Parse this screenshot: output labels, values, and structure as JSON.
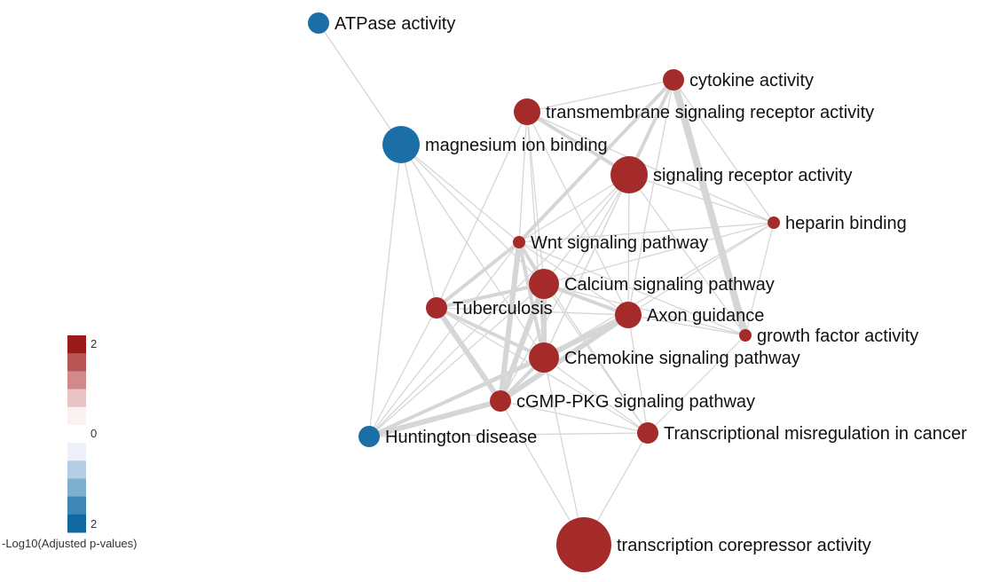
{
  "legend": {
    "title": "-Log10(Adjusted p-values)",
    "top_value": "2",
    "mid_value": "0",
    "bottom_value": "2",
    "swatch_colors": [
      "#9b1a1a",
      "#b75555",
      "#d08a8a",
      "#e8c4c4",
      "#fbf1f1",
      "#ffffff",
      "#eef1fa",
      "#b6cee3",
      "#7fafcf",
      "#3f87b5",
      "#0f68a0"
    ]
  },
  "colors": {
    "red": "#a52a2a",
    "blue": "#1c6fa6",
    "edge": "#d6d6d6"
  },
  "nodes": [
    {
      "id": "atpase",
      "label": "ATPase activity",
      "group": "blue",
      "size": "small"
    },
    {
      "id": "mg",
      "label": "magnesium ion binding",
      "group": "blue",
      "size": "large"
    },
    {
      "id": "hunt",
      "label": "Huntington disease",
      "group": "blue",
      "size": "small"
    },
    {
      "id": "cyto",
      "label": "cytokine activity",
      "group": "red",
      "size": "small"
    },
    {
      "id": "tmsr",
      "label": "transmembrane signaling receptor activity",
      "group": "red",
      "size": "medium"
    },
    {
      "id": "sra",
      "label": "signaling receptor activity",
      "group": "red",
      "size": "large"
    },
    {
      "id": "hep",
      "label": "heparin binding",
      "group": "red",
      "size": "tiny"
    },
    {
      "id": "wnt",
      "label": "Wnt signaling pathway",
      "group": "red",
      "size": "tiny"
    },
    {
      "id": "calc",
      "label": "Calcium signaling pathway",
      "group": "red",
      "size": "medium-large"
    },
    {
      "id": "tub",
      "label": "Tuberculosis",
      "group": "red",
      "size": "small"
    },
    {
      "id": "axon",
      "label": "Axon guidance",
      "group": "red",
      "size": "medium"
    },
    {
      "id": "gfa",
      "label": "growth factor activity",
      "group": "red",
      "size": "tiny"
    },
    {
      "id": "chem",
      "label": "Chemokine signaling pathway",
      "group": "red",
      "size": "medium-large"
    },
    {
      "id": "cgmp",
      "label": "cGMP-PKG signaling pathway",
      "group": "red",
      "size": "small"
    },
    {
      "id": "trans",
      "label": "Transcriptional misregulation in cancer",
      "group": "red",
      "size": "small"
    },
    {
      "id": "tca",
      "label": "transcription corepressor activity",
      "group": "red",
      "size": "huge"
    }
  ],
  "edges": [
    [
      "atpase",
      "mg",
      1
    ],
    [
      "mg",
      "tub",
      1
    ],
    [
      "mg",
      "hunt",
      1
    ],
    [
      "mg",
      "calc",
      1
    ],
    [
      "mg",
      "wnt",
      1
    ],
    [
      "mg",
      "chem",
      1
    ],
    [
      "cyto",
      "gfa",
      4
    ],
    [
      "cyto",
      "sra",
      2
    ],
    [
      "cyto",
      "tmsr",
      1
    ],
    [
      "cyto",
      "hep",
      1
    ],
    [
      "cyto",
      "wnt",
      2
    ],
    [
      "cyto",
      "chem",
      1
    ],
    [
      "cyto",
      "axon",
      1
    ],
    [
      "tmsr",
      "sra",
      2
    ],
    [
      "tmsr",
      "wnt",
      1
    ],
    [
      "tmsr",
      "tub",
      1
    ],
    [
      "tmsr",
      "calc",
      1
    ],
    [
      "tmsr",
      "axon",
      1
    ],
    [
      "tmsr",
      "hep",
      1
    ],
    [
      "tmsr",
      "chem",
      1
    ],
    [
      "sra",
      "hep",
      1
    ],
    [
      "sra",
      "wnt",
      1
    ],
    [
      "sra",
      "calc",
      1
    ],
    [
      "sra",
      "axon",
      1
    ],
    [
      "sra",
      "chem",
      1
    ],
    [
      "sra",
      "cgmp",
      1
    ],
    [
      "sra",
      "gfa",
      1
    ],
    [
      "sra",
      "hunt",
      1
    ],
    [
      "hep",
      "gfa",
      1
    ],
    [
      "hep",
      "axon",
      1
    ],
    [
      "hep",
      "wnt",
      1
    ],
    [
      "hep",
      "calc",
      1
    ],
    [
      "hep",
      "chem",
      1
    ],
    [
      "wnt",
      "calc",
      2
    ],
    [
      "wnt",
      "axon",
      1
    ],
    [
      "wnt",
      "chem",
      2
    ],
    [
      "wnt",
      "cgmp",
      3
    ],
    [
      "wnt",
      "tub",
      2
    ],
    [
      "wnt",
      "hunt",
      1
    ],
    [
      "wnt",
      "trans",
      1
    ],
    [
      "wnt",
      "gfa",
      1
    ],
    [
      "calc",
      "axon",
      2
    ],
    [
      "calc",
      "chem",
      3
    ],
    [
      "calc",
      "cgmp",
      3
    ],
    [
      "calc",
      "tub",
      2
    ],
    [
      "calc",
      "hunt",
      1
    ],
    [
      "calc",
      "gfa",
      1
    ],
    [
      "calc",
      "trans",
      1
    ],
    [
      "tub",
      "axon",
      1
    ],
    [
      "tub",
      "chem",
      2
    ],
    [
      "tub",
      "cgmp",
      3
    ],
    [
      "tub",
      "hunt",
      1
    ],
    [
      "tub",
      "trans",
      1
    ],
    [
      "axon",
      "gfa",
      1
    ],
    [
      "axon",
      "chem",
      3
    ],
    [
      "axon",
      "cgmp",
      3
    ],
    [
      "axon",
      "trans",
      1
    ],
    [
      "axon",
      "hunt",
      1
    ],
    [
      "chem",
      "cgmp",
      2
    ],
    [
      "chem",
      "hunt",
      2
    ],
    [
      "chem",
      "trans",
      1
    ],
    [
      "chem",
      "tca",
      1
    ],
    [
      "cgmp",
      "hunt",
      3
    ],
    [
      "cgmp",
      "trans",
      1
    ],
    [
      "cgmp",
      "tca",
      1
    ],
    [
      "hunt",
      "trans",
      1
    ],
    [
      "trans",
      "tca",
      1
    ],
    [
      "gfa",
      "trans",
      1
    ]
  ]
}
